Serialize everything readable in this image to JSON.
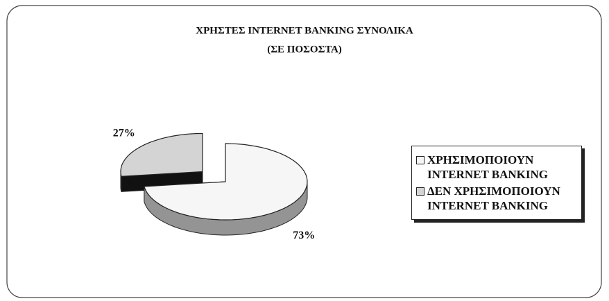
{
  "chart_data": {
    "type": "pie",
    "title": "ΧΡΗΣΤΕΣ INTERNET BANKING ΣΥΝΟΛΙΚΑ",
    "subtitle": "(ΣΕ ΠΟΣΟΣΤΑ)",
    "categories": [
      "ΧΡΗΣΙΜΟΠΟΙΟΥΝ INTERNET BANKING",
      "ΔΕΝ ΧΡΗΣΙΜΟΠΟΙΟΥΝ INTERNET BANKING"
    ],
    "values": [
      73,
      27
    ],
    "value_labels": [
      "73%",
      "27%"
    ],
    "colors": [
      "#f6f6f6",
      "#d4d4d4"
    ],
    "legend": "right"
  }
}
